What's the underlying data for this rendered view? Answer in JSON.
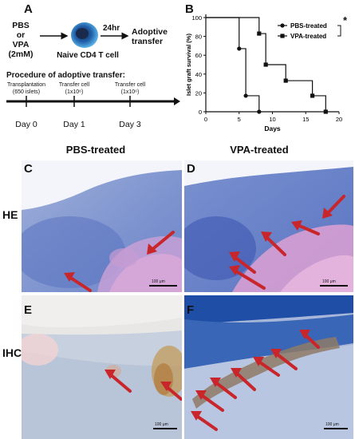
{
  "panel_a": {
    "letter": "A",
    "treatment_line1": "PBS",
    "treatment_line2": "or",
    "treatment_line3": "VPA",
    "treatment_line4": "(2mM)",
    "cell_label": "Naive CD4 T cell",
    "time_label": "24hr",
    "transfer_line1": "Adoptive",
    "transfer_line2": "transfer",
    "procedure_title": "Procedure of adoptive transfer:",
    "events": [
      {
        "line1": "Transplantation",
        "line2": "(650 islets)",
        "day": "Day 0"
      },
      {
        "line1": "Transfer cell",
        "line2": "(1x10⁶)",
        "day": "Day 1"
      },
      {
        "line1": "Transfer cell",
        "line2": "(1x10⁶)",
        "day": "Day 3"
      }
    ]
  },
  "panel_b": {
    "letter": "B",
    "significance": "*",
    "legend_pos": "top-right"
  },
  "chart_data": {
    "type": "line",
    "step": true,
    "xlabel": "Days",
    "ylabel": "Islet graft survival (%)",
    "xlim": [
      0,
      20
    ],
    "ylim": [
      0,
      100
    ],
    "xticks": [
      "0",
      "5",
      "10",
      "15",
      "20"
    ],
    "yticks": [
      "0",
      "20",
      "40",
      "60",
      "80",
      "100"
    ],
    "series": [
      {
        "name": "PBS-treated",
        "marker": "circle",
        "points": [
          [
            0,
            100
          ],
          [
            5,
            100
          ],
          [
            5,
            67
          ],
          [
            6,
            67
          ],
          [
            6,
            17
          ],
          [
            8,
            17
          ],
          [
            8,
            0
          ]
        ]
      },
      {
        "name": "VPA-treated",
        "marker": "square",
        "points": [
          [
            0,
            100
          ],
          [
            8,
            100
          ],
          [
            8,
            83
          ],
          [
            9,
            83
          ],
          [
            9,
            50
          ],
          [
            12,
            50
          ],
          [
            12,
            33
          ],
          [
            16,
            33
          ],
          [
            16,
            17
          ],
          [
            18,
            17
          ],
          [
            18,
            0
          ]
        ]
      }
    ]
  },
  "histology": {
    "col_pbs": "PBS-treated",
    "col_vpa": "VPA-treated",
    "row_he": "HE",
    "row_ihc": "IHC",
    "panels": [
      {
        "letter": "C",
        "scale": "100 μm"
      },
      {
        "letter": "D",
        "scale": "100 μm"
      },
      {
        "letter": "E",
        "scale": "100 μm"
      },
      {
        "letter": "F",
        "scale": "100 μm"
      }
    ],
    "arrow_color": "#c8262b"
  }
}
